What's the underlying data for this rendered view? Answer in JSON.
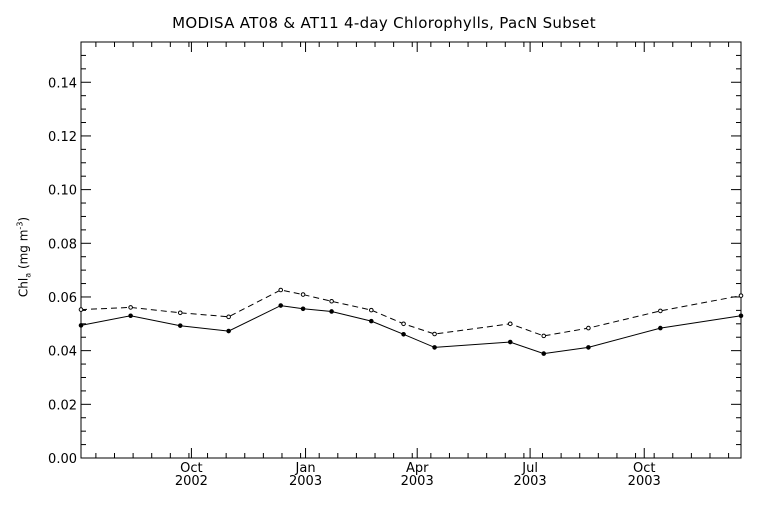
{
  "chart_data": {
    "type": "line",
    "title": "MODISA AT08 & AT11 4-day Chlorophylls, PacN Subset",
    "ylabel": {
      "prefix": "Chl",
      "sub": "a",
      "unit_prefix": " (mg m",
      "sup": "-3",
      "unit_suffix": ")"
    },
    "xlabel": "",
    "ylim": [
      0.0,
      0.155
    ],
    "xlim": [
      "2002-07-04",
      "2003-12-18"
    ],
    "y_ticks": [
      "0.00",
      "0.02",
      "0.04",
      "0.06",
      "0.08",
      "0.10",
      "0.12",
      "0.14"
    ],
    "x_ticks": [
      {
        "date": "2002-10-01",
        "month": "Oct",
        "year": "2002"
      },
      {
        "date": "2003-01-01",
        "month": "Jan",
        "year": "2003"
      },
      {
        "date": "2003-04-01",
        "month": "Apr",
        "year": "2003"
      },
      {
        "date": "2003-07-01",
        "month": "Jul",
        "year": "2003"
      },
      {
        "date": "2003-10-01",
        "month": "Oct",
        "year": "2003"
      }
    ],
    "grid": false,
    "series": [
      {
        "style": "solid",
        "points": [
          {
            "x": "2002-07-04",
            "y": 0.0494
          },
          {
            "x": "2002-08-13",
            "y": 0.053
          },
          {
            "x": "2002-09-22",
            "y": 0.0493
          },
          {
            "x": "2002-10-31",
            "y": 0.0473
          },
          {
            "x": "2002-12-12",
            "y": 0.0568
          },
          {
            "x": "2002-12-30",
            "y": 0.0556
          },
          {
            "x": "2003-01-22",
            "y": 0.0546
          },
          {
            "x": "2003-02-23",
            "y": 0.051
          },
          {
            "x": "2003-03-21",
            "y": 0.0461
          },
          {
            "x": "2003-04-15",
            "y": 0.0412
          },
          {
            "x": "2003-06-15",
            "y": 0.0432
          },
          {
            "x": "2003-07-12",
            "y": 0.0389
          },
          {
            "x": "2003-08-17",
            "y": 0.0412
          },
          {
            "x": "2003-10-14",
            "y": 0.0484
          },
          {
            "x": "2003-12-18",
            "y": 0.053
          }
        ]
      },
      {
        "style": "dashed",
        "points": [
          {
            "x": "2002-07-04",
            "y": 0.0553
          },
          {
            "x": "2002-08-13",
            "y": 0.0561
          },
          {
            "x": "2002-09-22",
            "y": 0.0541
          },
          {
            "x": "2002-10-31",
            "y": 0.0526
          },
          {
            "x": "2002-12-12",
            "y": 0.0626
          },
          {
            "x": "2002-12-30",
            "y": 0.0609
          },
          {
            "x": "2003-01-22",
            "y": 0.0584
          },
          {
            "x": "2003-02-23",
            "y": 0.0551
          },
          {
            "x": "2003-03-21",
            "y": 0.05
          },
          {
            "x": "2003-04-15",
            "y": 0.0462
          },
          {
            "x": "2003-06-15",
            "y": 0.05
          },
          {
            "x": "2003-07-12",
            "y": 0.0455
          },
          {
            "x": "2003-08-17",
            "y": 0.0484
          },
          {
            "x": "2003-10-14",
            "y": 0.0548
          },
          {
            "x": "2003-12-18",
            "y": 0.0605
          }
        ]
      }
    ]
  }
}
